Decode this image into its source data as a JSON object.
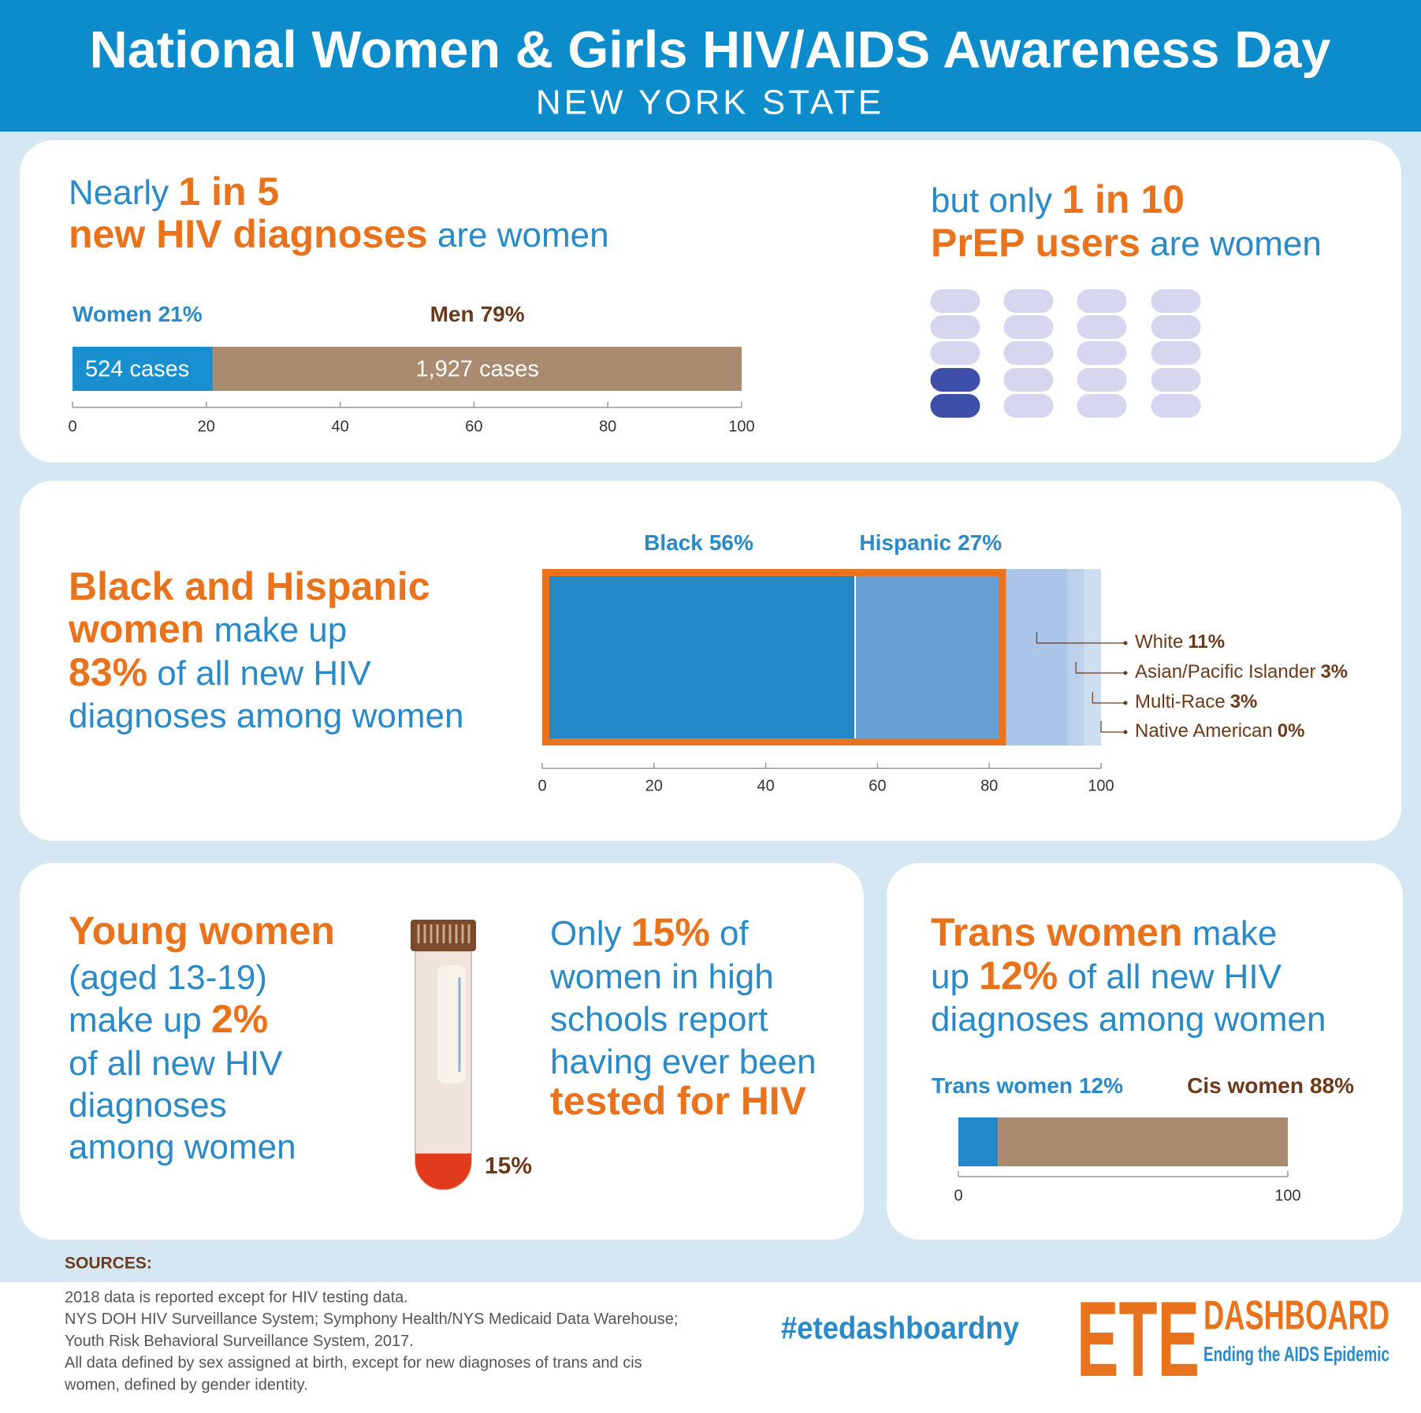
{
  "header": {
    "title": "National Women & Girls HIV/AIDS Awareness Day",
    "subtitle": "NEW YORK STATE"
  },
  "panel1": {
    "left": [
      "Nearly ",
      "1 in 5",
      "new HIV diagnoses",
      " are women"
    ],
    "right": [
      "but only ",
      "1 in 10",
      "PrEP users",
      " are women"
    ]
  },
  "panel2": {
    "text": [
      "Black and Hispanic",
      "women",
      " make up",
      "83%",
      " of all new HIV",
      "diagnoses among women"
    ]
  },
  "panel3": {
    "left": [
      "Young women",
      "(aged 13-19)",
      "make up ",
      "2%",
      "of all new HIV",
      "diagnoses",
      "among women"
    ],
    "right": [
      "Only ",
      "15%",
      " of",
      "women in high",
      "schools report",
      "having ever been",
      "tested for HIV"
    ]
  },
  "panel4": {
    "text": [
      "Trans women",
      " make",
      "up ",
      "12%",
      " of all new HIV",
      "diagnoses among women"
    ]
  },
  "chart_data": [
    {
      "type": "bar",
      "categories": [
        "Women",
        "Men"
      ],
      "values": [
        21,
        79
      ],
      "value_labels": [
        "21%",
        "79%"
      ],
      "count_labels": [
        "524 cases",
        "1,927 cases"
      ],
      "colors": [
        "#1a8fcf",
        "#ab8b70"
      ],
      "xlim": [
        0,
        100
      ],
      "xticks": [
        0,
        20,
        40,
        60,
        80,
        100
      ]
    },
    {
      "type": "pictogram",
      "values": [
        2,
        18
      ],
      "colors": [
        "#3d4fa8",
        "#d6d7ef"
      ]
    },
    {
      "type": "bar",
      "categories": [
        "Black",
        "Hispanic",
        "White",
        "Asian/Pacific Islander",
        "Multi-Race",
        "Native American"
      ],
      "values": [
        56,
        27,
        11,
        3,
        3,
        0
      ],
      "value_labels": [
        "56%",
        "27%",
        "11%",
        "3%",
        "3%",
        "0%"
      ],
      "colors": [
        "#2487c8",
        "#67a1d4",
        "#aac5e7",
        "#bdd1ed",
        "#cedef1",
        "#dfe8f6"
      ],
      "highlight": [
        "Black",
        "Hispanic"
      ],
      "highlight_color": "#e8731c",
      "xlim": [
        0,
        100
      ],
      "xticks": [
        0,
        20,
        40,
        60,
        80,
        100
      ]
    },
    {
      "type": "tube",
      "values": [
        15
      ],
      "value_labels": [
        "15%"
      ],
      "color": "#e23a1c",
      "ylim": [
        0,
        100
      ]
    },
    {
      "type": "bar",
      "categories": [
        "Trans women",
        "Cis women"
      ],
      "values": [
        12,
        88
      ],
      "value_labels": [
        "12%",
        "88%"
      ],
      "colors": [
        "#2487c8",
        "#ab8b70"
      ],
      "xlim": [
        0,
        100
      ],
      "xticks": [
        0,
        100
      ]
    }
  ],
  "sources": {
    "title": "SOURCES:",
    "lines": [
      "2018 data is reported except for HIV testing data.",
      "NYS DOH HIV Surveillance System; Symphony Health/NYS Medicaid Data Warehouse;",
      "Youth Risk Behavioral Surveillance System, 2017.",
      "All data defined by sex assigned at birth, except for new diagnoses of trans and cis",
      "women, defined by gender identity."
    ]
  },
  "footer": {
    "hashtag": "#etedashboardny",
    "logo": "ETE",
    "logo_word": "DASHBOARD",
    "logo_tagline": "Ending the AIDS Epidemic"
  }
}
